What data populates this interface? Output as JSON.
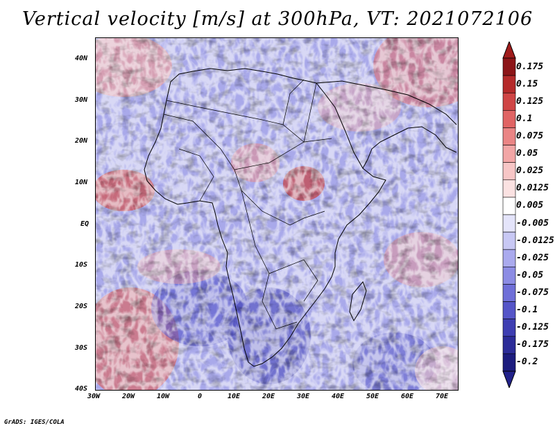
{
  "title": "Vertical velocity [m/s] at 300hPa, VT: 2021072106",
  "credit": "GrADS: IGES/COLA",
  "map": {
    "region": "Africa",
    "lon_range": [
      -30,
      75
    ],
    "lat_range": [
      -40,
      45
    ],
    "lat_labels": [
      "40N",
      "30N",
      "20N",
      "10N",
      "EQ",
      "10S",
      "20S",
      "30S",
      "40S"
    ],
    "lon_labels": [
      "30W",
      "20W",
      "10W",
      "0",
      "10E",
      "20E",
      "30E",
      "40E",
      "50E",
      "60E",
      "70E"
    ]
  },
  "colorbar": {
    "levels": [
      "0.175",
      "0.15",
      "0.125",
      "0.1",
      "0.075",
      "0.05",
      "0.025",
      "0.0125",
      "0.005",
      "-0.005",
      "-0.0125",
      "-0.025",
      "-0.05",
      "-0.075",
      "-0.1",
      "-0.125",
      "-0.175",
      "-0.2"
    ],
    "colors": [
      "#8c1518",
      "#b52a2a",
      "#cf4545",
      "#e06464",
      "#ea8585",
      "#f2a6a6",
      "#f7c6c6",
      "#fbe2e2",
      "#ffffff",
      "#e4e4fa",
      "#c8c8f4",
      "#aaaaee",
      "#8c8ce4",
      "#6f6fd8",
      "#5555c8",
      "#3e3eb2",
      "#2c2c98",
      "#1c1c7e"
    ],
    "top_color": "#a01c1c",
    "bottom_color": "#22228a"
  }
}
